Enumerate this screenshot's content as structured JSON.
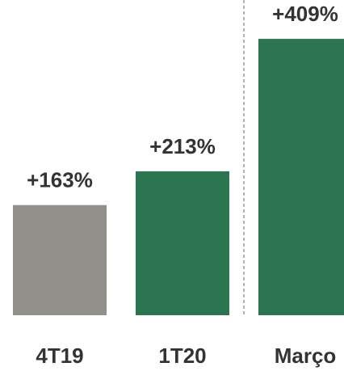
{
  "chart_data": {
    "type": "bar",
    "categories": [
      "4T19",
      "1T20",
      "Março"
    ],
    "values": [
      163,
      213,
      409
    ],
    "value_labels": [
      "+163%",
      "+213%",
      "+409%"
    ],
    "colors": [
      "#919189",
      "#2b7650",
      "#2b7650"
    ]
  }
}
